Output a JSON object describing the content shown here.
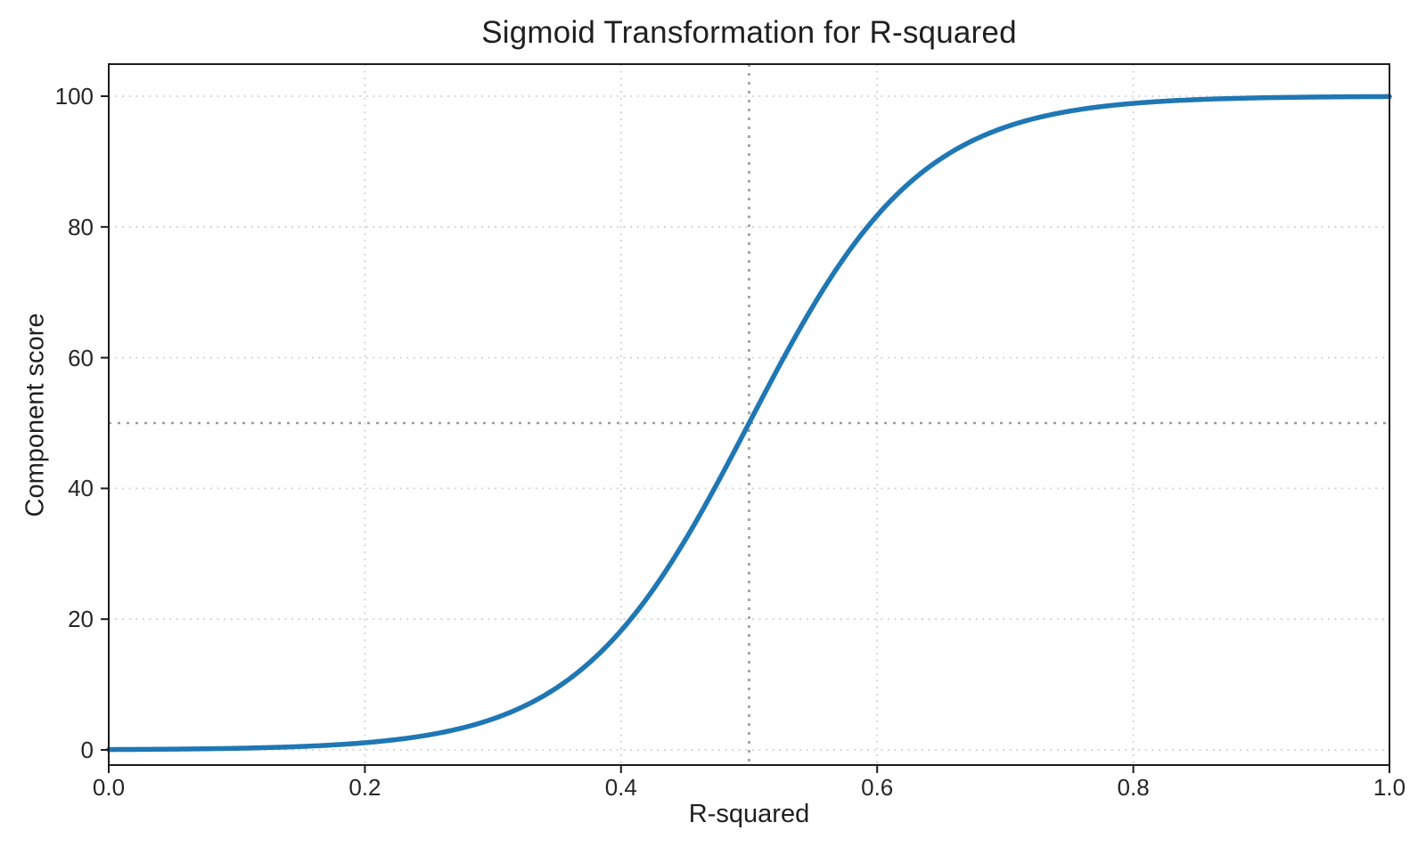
{
  "chart_data": {
    "type": "line",
    "title": "Sigmoid Transformation for R-squared",
    "xlabel": "R-squared",
    "ylabel": "Component score",
    "xlim": [
      0,
      1
    ],
    "ylim": [
      -2.5,
      105
    ],
    "grid": true,
    "legend": "none",
    "x_ticks": {
      "values": [
        0,
        0.2,
        0.4,
        0.6,
        0.8,
        1.0
      ],
      "labels": [
        "0.0",
        "0.2",
        "0.4",
        "0.6",
        "0.8",
        "1.0"
      ]
    },
    "y_ticks": {
      "values": [
        0,
        20,
        40,
        60,
        80,
        100
      ],
      "labels": [
        "0",
        "20",
        "40",
        "60",
        "80",
        "100"
      ]
    },
    "series": [
      {
        "name": "sigmoid-curve",
        "color": "#1f77b4",
        "line_width": 5.5,
        "sigmoid_params": {
          "center": 0.5,
          "steepness": 15,
          "scale": 100
        },
        "x": [
          0.0,
          0.05,
          0.1,
          0.15,
          0.2,
          0.25,
          0.3,
          0.35,
          0.4,
          0.45,
          0.5,
          0.55,
          0.6,
          0.65,
          0.7,
          0.75,
          0.8,
          0.85,
          0.9,
          0.95,
          1.0
        ],
        "y": [
          0.06,
          0.12,
          0.25,
          0.52,
          1.1,
          2.3,
          4.74,
          9.53,
          18.24,
          32.08,
          50.0,
          67.92,
          81.76,
          90.47,
          95.26,
          97.7,
          98.9,
          99.48,
          99.75,
          99.88,
          99.94
        ]
      }
    ],
    "reference_lines": {
      "vertical_x": 0.5,
      "horizontal_y": 50,
      "color": "#9b9b9b",
      "style": "dotted"
    },
    "colors": {
      "grid": "#cdcdcd",
      "axis": "#1c1c1c",
      "text": "#1f1f1f",
      "background": "#ffffff"
    }
  }
}
